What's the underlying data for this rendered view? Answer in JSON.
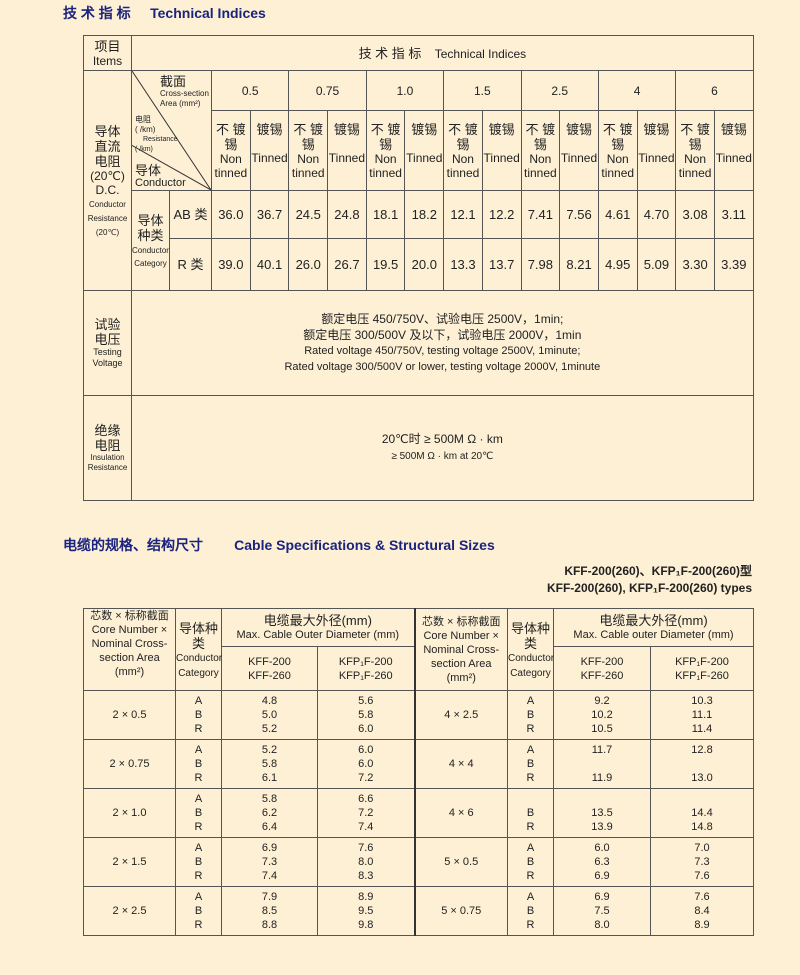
{
  "section1": {
    "title_cn": "技 术 指 标",
    "title_en": "Technical Indices"
  },
  "tech_table": {
    "items_cn": "项目",
    "items_en": "Items",
    "header_cn": "技 术 指 标",
    "header_en": "Technical Indices",
    "dcr_label": {
      "cn1": "导体",
      "cn2": "直流",
      "cn3": "电阻",
      "temp": "(20℃)",
      "en1": "D.C.",
      "en2": "Conductor",
      "en3": "Resistance",
      "en_temp": "(20℃)"
    },
    "diagonal": {
      "section_cn": "截面",
      "section_en1": "Cross-section",
      "section_en2": "Area (mm²)",
      "res_cn": "电阻",
      "res_unit": "( /km)",
      "res_en": "Resistance",
      "res_unit2": "( /km)",
      "cond_cn": "导体",
      "cond_en": "Conductor"
    },
    "sizes": [
      "0.5",
      "0.75",
      "1.0",
      "1.5",
      "2.5",
      "4",
      "6"
    ],
    "non_tinned_cn1": "不 镀",
    "non_tinned_cn2": "锡",
    "non_tinned_en1": "Non",
    "non_tinned_en2": "tinned",
    "tinned_cn": "镀锡",
    "tinned_en": "Tinned",
    "category_cn1": "导体",
    "category_cn2": "种类",
    "category_en1": "Conductor",
    "category_en2": "Category",
    "rows": [
      {
        "label": "AB 类",
        "values": [
          "36.0",
          "36.7",
          "24.5",
          "24.8",
          "18.1",
          "18.2",
          "12.1",
          "12.2",
          "7.41",
          "7.56",
          "4.61",
          "4.70",
          "3.08",
          "3.11"
        ]
      },
      {
        "label": "R 类",
        "values": [
          "39.0",
          "40.1",
          "26.0",
          "26.7",
          "19.5",
          "20.0",
          "13.3",
          "13.7",
          "7.98",
          "8.21",
          "4.95",
          "5.09",
          "3.30",
          "3.39"
        ]
      }
    ],
    "testing_voltage": {
      "label_cn1": "试验",
      "label_cn2": "电压",
      "label_en1": "Testing",
      "label_en2": "Voltage",
      "lines": [
        "额定电压 450/750V、试验电压 2500V，1min;",
        "额定电压 300/500V 及以下，试验电压 2000V，1min",
        "Rated voltage 450/750V, testing voltage 2500V, 1minute;",
        "Rated voltage 300/500V or lower, testing voltage 2000V, 1minute"
      ]
    },
    "insulation": {
      "label_cn1": "绝缘",
      "label_cn2": "电阻",
      "label_en1": "Insulation",
      "label_en2": "Resistance",
      "lines": [
        "20℃时 ≥ 500M Ω · km",
        "≥ 500M Ω · km at 20℃"
      ]
    }
  },
  "section2": {
    "title_cn": "电缆的规格、结构尺寸",
    "title_en": "Cable Specifications & Structural Sizes",
    "type_cn": "KFF-200(260)、KFP₁F-200(260)型",
    "type_en": "KFF-200(260), KFP₁F-200(260) types"
  },
  "spec_table": {
    "size_hdr": [
      "芯数 × 标称截面",
      "Core Number ×",
      "Nominal Cross-",
      "section Area",
      "(mm²)"
    ],
    "cat_hdr": [
      "导体种",
      "类",
      "Conductor",
      "Category"
    ],
    "diam_hdr_cn": "电缆最大外径(mm)",
    "diam_hdr_en": "Max. Cable Outer Diameter (mm)",
    "diam_hdr_en_right": "Max. Cable   outer Diameter (mm)",
    "kff": [
      "KFF-200",
      "KFF-260"
    ],
    "kfp": [
      "KFP₁F-200",
      "KFP₁F-260"
    ],
    "left_rows": [
      {
        "size": "2 × 0.5",
        "cats": [
          "A",
          "B",
          "R"
        ],
        "kff": [
          "4.8",
          "5.0",
          "5.2"
        ],
        "kfp": [
          "5.6",
          "5.8",
          "6.0"
        ]
      },
      {
        "size": "2 × 0.75",
        "cats": [
          "A",
          "B",
          "R"
        ],
        "kff": [
          "5.2",
          "5.8",
          "6.1"
        ],
        "kfp": [
          "6.0",
          "6.0",
          "7.2"
        ]
      },
      {
        "size": "2 × 1.0",
        "cats": [
          "A",
          "B",
          "R"
        ],
        "kff": [
          "5.8",
          "6.2",
          "6.4"
        ],
        "kfp": [
          "6.6",
          "7.2",
          "7.4"
        ]
      },
      {
        "size": "2 × 1.5",
        "cats": [
          "A",
          "B",
          "R"
        ],
        "kff": [
          "6.9",
          "7.3",
          "7.4"
        ],
        "kfp": [
          "7.6",
          "8.0",
          "8.3"
        ]
      },
      {
        "size": "2 × 2.5",
        "cats": [
          "A",
          "B",
          "R"
        ],
        "kff": [
          "7.9",
          "8.5",
          "8.8"
        ],
        "kfp": [
          "8.9",
          "9.5",
          "9.8"
        ]
      }
    ],
    "right_rows": [
      {
        "size": "4 × 2.5",
        "cats": [
          "A",
          "B",
          "R"
        ],
        "kff": [
          "9.2",
          "10.2",
          "10.5"
        ],
        "kfp": [
          "10.3",
          "11.1",
          "11.4"
        ]
      },
      {
        "size": "4 × 4",
        "cats": [
          "A",
          "B",
          "R"
        ],
        "kff": [
          "11.7",
          "",
          "11.9"
        ],
        "kfp": [
          "12.8",
          "",
          "13.0"
        ]
      },
      {
        "size": "4 × 6",
        "cats": [
          "",
          "B",
          "R"
        ],
        "kff": [
          "",
          "13.5",
          "13.9"
        ],
        "kfp": [
          "",
          "14.4",
          "14.8"
        ]
      },
      {
        "size": "5 × 0.5",
        "cats": [
          "A",
          "B",
          "R"
        ],
        "kff": [
          "6.0",
          "6.3",
          "6.9"
        ],
        "kfp": [
          "7.0",
          "7.3",
          "7.6"
        ]
      },
      {
        "size": "5 × 0.75",
        "cats": [
          "A",
          "B",
          "R"
        ],
        "kff": [
          "6.9",
          "7.5",
          "8.0"
        ],
        "kfp": [
          "7.6",
          "8.4",
          "8.9"
        ]
      }
    ]
  },
  "colors": {
    "background": "#fdf0d5",
    "title": "#1a237e",
    "rule": "#555555"
  }
}
